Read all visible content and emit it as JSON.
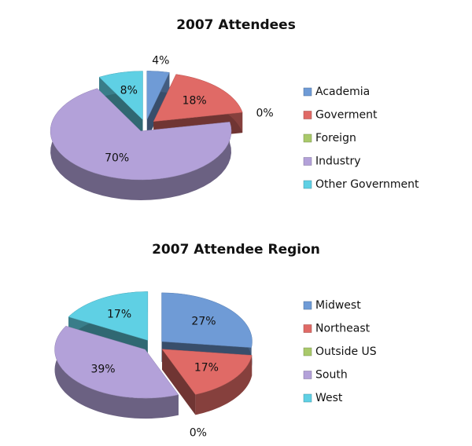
{
  "chart_data": [
    {
      "type": "pie",
      "title": "2007 Attendees",
      "categories": [
        "Academia",
        "Goverment",
        "Foreign",
        "Industry",
        "Other Government"
      ],
      "values": [
        4,
        18,
        0,
        70,
        8
      ],
      "value_labels": [
        "4%",
        "18%",
        "0%",
        "70%",
        "8%"
      ],
      "colors": [
        "#6f9bd6",
        "#e06a66",
        "#a9c96a",
        "#b3a1d9",
        "#5fd0e4"
      ]
    },
    {
      "type": "pie",
      "title": "2007 Attendee Region",
      "categories": [
        "Midwest",
        "Northeast",
        "Outside US",
        "South",
        "West"
      ],
      "values": [
        27,
        17,
        0,
        39,
        17
      ],
      "value_labels": [
        "27%",
        "17%",
        "0%",
        "39%",
        "17%"
      ],
      "colors": [
        "#6f9bd6",
        "#e06a66",
        "#a9c96a",
        "#b3a1d9",
        "#5fd0e4"
      ]
    }
  ]
}
